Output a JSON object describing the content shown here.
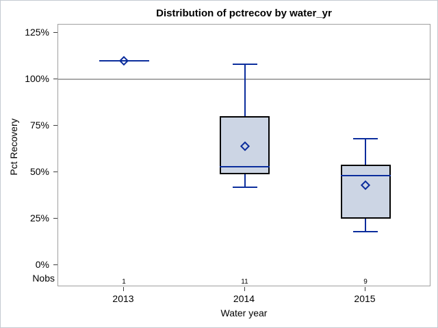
{
  "chart_data": {
    "type": "box",
    "title": "Distribution of pctrecov by water_yr",
    "xlabel": "Water year",
    "ylabel": "Pct Recovery",
    "nobs_label": "Nobs",
    "categories": [
      "2013",
      "2014",
      "2015"
    ],
    "y_ticks": [
      {
        "label": "125%",
        "value": 125
      },
      {
        "label": "100%",
        "value": 100
      },
      {
        "label": "75%",
        "value": 75
      },
      {
        "label": "50%",
        "value": 50
      },
      {
        "label": "25%",
        "value": 25
      },
      {
        "label": "0%",
        "value": 0
      }
    ],
    "ylim": [
      0,
      125
    ],
    "grid": false,
    "legend": "none",
    "reference_line_value": 100,
    "series": [
      {
        "category": "2013",
        "nobs": 1,
        "min": 110,
        "q1": 110,
        "median": 110,
        "mean": 110,
        "q3": 110,
        "max": 110
      },
      {
        "category": "2014",
        "nobs": 11,
        "min": 42,
        "q1": 49,
        "median": 53,
        "mean": 64,
        "q3": 80,
        "max": 108
      },
      {
        "category": "2015",
        "nobs": 9,
        "min": 18,
        "q1": 25,
        "median": 48,
        "mean": 43,
        "q3": 54,
        "max": 68
      }
    ],
    "colors": {
      "line": "#0a2c9c",
      "box_fill": "#ccd5e4",
      "box_border": "#000000",
      "reference_line": "#a9a9a9"
    }
  }
}
